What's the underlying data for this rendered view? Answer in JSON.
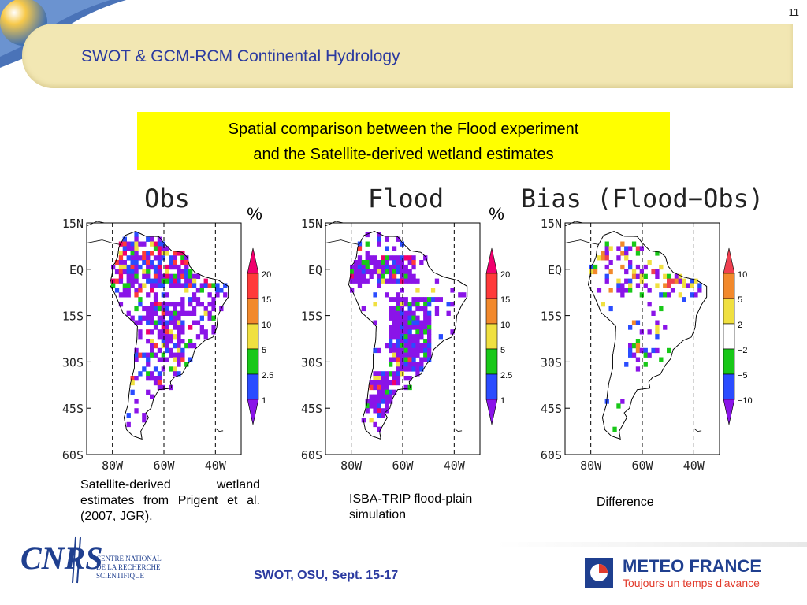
{
  "header": {
    "slide_number": "11",
    "title": "SWOT & GCM-RCM Continental Hydrology"
  },
  "subtitle": {
    "line1": "Spatial comparison between the Flood experiment",
    "line2": "and the Satellite-derived wetland estimates"
  },
  "chart_data": [
    {
      "type": "heatmap",
      "title": "Obs",
      "unit": "%",
      "x_ticks": [
        "80W",
        "60W",
        "40W"
      ],
      "y_ticks": [
        "15N",
        "EQ",
        "15S",
        "30S",
        "45S",
        "60S"
      ],
      "xlim": [
        -90,
        -30
      ],
      "ylim": [
        -60,
        15
      ],
      "colorbar": {
        "labels": [
          "20",
          "15",
          "10",
          "5",
          "2.5",
          "1"
        ],
        "colors": [
          "#f0006e",
          "#ff3a3a",
          "#f2892c",
          "#f0e040",
          "#18c818",
          "#2a4cff",
          "#8a14e8"
        ]
      }
    },
    {
      "type": "heatmap",
      "title": "Flood",
      "unit": "%",
      "x_ticks": [
        "80W",
        "60W",
        "40W"
      ],
      "y_ticks": [
        "15N",
        "EQ",
        "15S",
        "30S",
        "45S",
        "60S"
      ],
      "xlim": [
        -90,
        -30
      ],
      "ylim": [
        -60,
        15
      ],
      "colorbar": {
        "labels": [
          "20",
          "15",
          "10",
          "5",
          "2.5",
          "1"
        ],
        "colors": [
          "#f0006e",
          "#ff3a3a",
          "#f2892c",
          "#f0e040",
          "#18c818",
          "#2a4cff",
          "#8a14e8"
        ]
      }
    },
    {
      "type": "heatmap",
      "title": "Bias (Flood−Obs)",
      "unit": "",
      "x_ticks": [
        "80W",
        "60W",
        "40W"
      ],
      "y_ticks": [
        "15N",
        "EQ",
        "15S",
        "30S",
        "45S",
        "60S"
      ],
      "xlim": [
        -90,
        -30
      ],
      "ylim": [
        -60,
        15
      ],
      "colorbar": {
        "labels": [
          "10",
          "5",
          "2",
          "−2",
          "−5",
          "−10"
        ],
        "colors": [
          "#f04050",
          "#f2892c",
          "#f0e040",
          "#ffffff",
          "#18c818",
          "#2a4cff",
          "#8a14e8"
        ]
      }
    }
  ],
  "captions": {
    "obs": "Satellite-derived  wetland estimates from Prigent et al. (2007, JGR).",
    "flood": "ISBA-TRIP   flood-plain simulation",
    "bias": "Difference"
  },
  "footer": {
    "event": "SWOT, OSU, Sept. 15-17",
    "cnrs_lines": [
      "CENTRE NATIONAL",
      "DE LA RECHERCHE",
      "SCIENTIFIQUE"
    ],
    "meteo_name": "METEO FRANCE",
    "meteo_tagline": "Toujours un temps d'avance"
  }
}
